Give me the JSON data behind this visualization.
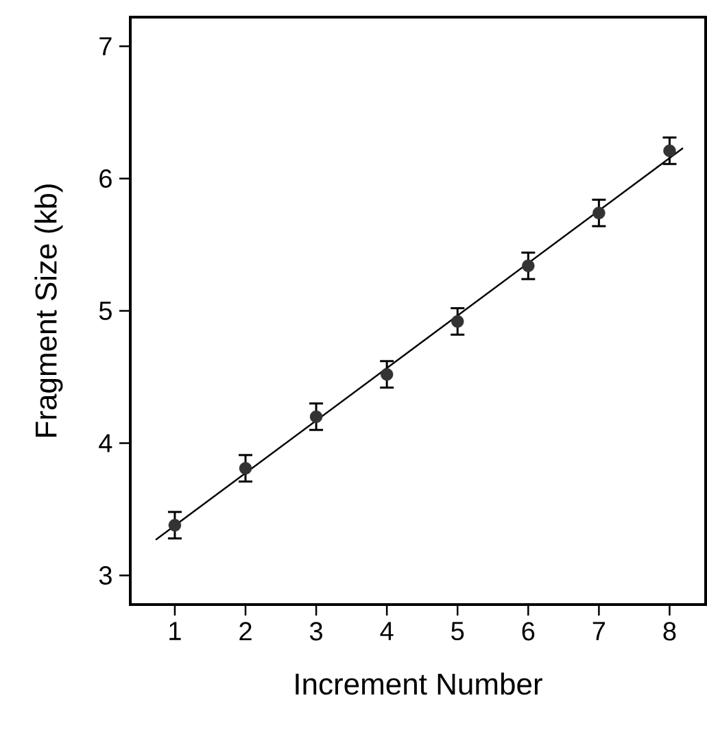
{
  "chart_data": {
    "type": "scatter",
    "xlabel": "Increment Number",
    "ylabel": "Fragment Size (kb)",
    "xlim": [
      0.37,
      8.51
    ],
    "ylim": [
      2.78,
      7.22
    ],
    "xticks": [
      1,
      2,
      3,
      4,
      5,
      6,
      7,
      8
    ],
    "yticks": [
      3,
      4,
      5,
      6,
      7
    ],
    "grid": false,
    "marker": "circle",
    "series": [
      {
        "color": "#333333",
        "x": [
          1,
          2,
          3,
          4,
          5,
          6,
          7,
          8
        ],
        "values": [
          3.38,
          3.81,
          4.2,
          4.52,
          4.92,
          5.34,
          5.74,
          6.21
        ],
        "errors": [
          0.1,
          0.1,
          0.1,
          0.1,
          0.1,
          0.1,
          0.1,
          0.1
        ]
      },
      {
        "type": "line",
        "color": "#000000",
        "marker": "none",
        "x": [
          0.73,
          8.19
        ],
        "values": [
          3.27,
          6.23
        ]
      }
    ]
  }
}
